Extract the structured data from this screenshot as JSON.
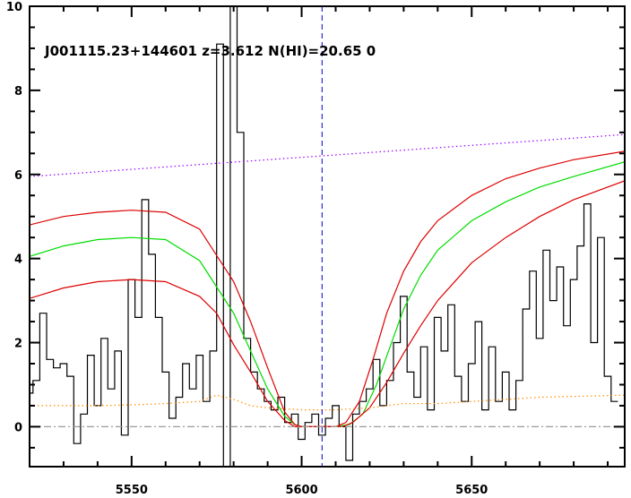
{
  "chart_data": {
    "type": "line",
    "title": "J001115.23+144601 z=3.612 N(HI)=20.65 0",
    "xlabel": "",
    "ylabel": "",
    "xlim": [
      5520,
      5695
    ],
    "ylim": [
      -0.95,
      10
    ],
    "grid": false,
    "xticks": [
      5550,
      5600,
      5650
    ],
    "yticks": [
      0,
      2,
      4,
      6,
      8,
      10
    ],
    "marker_x": 5606,
    "series": [
      {
        "style": "step",
        "color": "#000000",
        "x": [
          5520,
          5522,
          5524,
          5526,
          5528,
          5530,
          5532,
          5534,
          5536,
          5538,
          5540,
          5542,
          5544,
          5546,
          5548,
          5550,
          5552,
          5554,
          5556,
          5558,
          5560,
          5562,
          5564,
          5566,
          5568,
          5570,
          5572,
          5574,
          5576,
          5578,
          5580,
          5582,
          5584,
          5586,
          5588,
          5590,
          5592,
          5594,
          5596,
          5598,
          5600,
          5602,
          5604,
          5606,
          5608,
          5610,
          5612,
          5614,
          5616,
          5618,
          5620,
          5622,
          5624,
          5626,
          5628,
          5630,
          5632,
          5634,
          5636,
          5638,
          5640,
          5642,
          5644,
          5646,
          5648,
          5650,
          5652,
          5654,
          5656,
          5658,
          5660,
          5662,
          5664,
          5666,
          5668,
          5670,
          5672,
          5674,
          5676,
          5678,
          5680,
          5682,
          5684,
          5686,
          5688,
          5690,
          5692
        ],
        "y": [
          0.8,
          1.1,
          2.7,
          1.6,
          1.4,
          1.5,
          1.2,
          -0.4,
          0.3,
          1.7,
          0.5,
          2.1,
          0.9,
          1.8,
          -0.2,
          3.5,
          2.6,
          5.4,
          4.1,
          2.6,
          1.3,
          0.2,
          0.7,
          1.5,
          0.9,
          1.7,
          0.6,
          1.8,
          9.1,
          -1.0,
          10,
          7.0,
          2.1,
          1.3,
          0.9,
          0.6,
          0.4,
          0.7,
          0.1,
          0.3,
          -0.3,
          0.1,
          0.3,
          -0.2,
          0.2,
          0.5,
          0.0,
          -0.8,
          0.3,
          0.6,
          0.9,
          1.6,
          0.5,
          1.1,
          2.0,
          3.1,
          1.3,
          0.7,
          1.9,
          0.4,
          2.6,
          1.8,
          2.9,
          1.2,
          0.6,
          1.5,
          2.5,
          0.4,
          1.9,
          0.6,
          1.3,
          0.4,
          1.1,
          2.8,
          3.7,
          2.1,
          4.2,
          3.0,
          3.8,
          2.4,
          3.5,
          4.3,
          5.3,
          2.0,
          4.5,
          1.2,
          0.6
        ]
      },
      {
        "style": "dotted",
        "color": "#9900ff",
        "x": [
          5520,
          5695
        ],
        "y": [
          5.95,
          6.95
        ]
      },
      {
        "style": "solid",
        "color": "#00dd00",
        "x": [
          5520,
          5530,
          5540,
          5550,
          5560,
          5570,
          5580,
          5585,
          5590,
          5595,
          5598,
          5600,
          5610,
          5614,
          5618,
          5622,
          5626,
          5630,
          5635,
          5640,
          5650,
          5660,
          5670,
          5680,
          5695
        ],
        "y": [
          4.05,
          4.3,
          4.45,
          4.5,
          4.45,
          3.95,
          2.7,
          1.8,
          0.9,
          0.25,
          0.05,
          0.0,
          0.0,
          0.05,
          0.3,
          1.0,
          1.9,
          2.8,
          3.6,
          4.2,
          4.9,
          5.35,
          5.7,
          5.95,
          6.3
        ]
      },
      {
        "style": "solid",
        "color": "#dd0000",
        "x": [
          5520,
          5530,
          5540,
          5550,
          5560,
          5570,
          5580,
          5585,
          5590,
          5595,
          5598,
          5600,
          5610,
          5613,
          5617,
          5621,
          5625,
          5630,
          5635,
          5640,
          5650,
          5660,
          5670,
          5680,
          5695
        ],
        "y": [
          4.8,
          5.0,
          5.1,
          5.15,
          5.1,
          4.7,
          3.45,
          2.5,
          1.4,
          0.35,
          0.05,
          0.0,
          0.0,
          0.1,
          0.6,
          1.6,
          2.7,
          3.7,
          4.4,
          4.9,
          5.5,
          5.9,
          6.15,
          6.35,
          6.55
        ]
      },
      {
        "style": "solid",
        "color": "#dd0000",
        "x": [
          5520,
          5530,
          5540,
          5550,
          5560,
          5570,
          5575,
          5580,
          5585,
          5590,
          5595,
          5598,
          5600,
          5612,
          5615,
          5620,
          5625,
          5630,
          5635,
          5640,
          5650,
          5660,
          5670,
          5680,
          5695
        ],
        "y": [
          3.05,
          3.3,
          3.45,
          3.5,
          3.45,
          3.1,
          2.7,
          1.95,
          1.3,
          0.6,
          0.15,
          0.0,
          0.0,
          0.0,
          0.1,
          0.45,
          1.05,
          1.75,
          2.4,
          3.0,
          3.9,
          4.5,
          5.0,
          5.4,
          5.85
        ]
      },
      {
        "style": "dotted",
        "color": "#ff8c00",
        "x": [
          5520,
          5530,
          5540,
          5550,
          5560,
          5570,
          5575,
          5580,
          5585,
          5590,
          5600,
          5610,
          5620,
          5630,
          5640,
          5650,
          5660,
          5670,
          5680,
          5695
        ],
        "y": [
          0.5,
          0.5,
          0.5,
          0.52,
          0.55,
          0.6,
          0.75,
          0.65,
          0.5,
          0.45,
          0.4,
          0.4,
          0.45,
          0.55,
          0.55,
          0.6,
          0.65,
          0.7,
          0.72,
          0.75
        ]
      },
      {
        "style": "dashdot",
        "color": "#999999",
        "x": [
          5520,
          5695
        ],
        "y": [
          0,
          0
        ]
      }
    ]
  }
}
